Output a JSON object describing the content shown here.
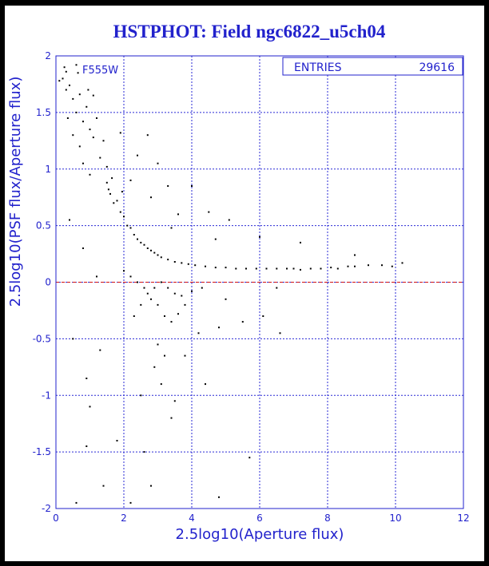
{
  "page": {
    "title": "HSTPHOT: Field ngc6822_u5ch04"
  },
  "colors": {
    "background": "#000000",
    "frame": "#ffffff",
    "accent": "#2222cc",
    "grid": "#2a2ad6",
    "points": "#000000",
    "reference_line": "#d01010"
  },
  "stats_box": {
    "label": "ENTRIES",
    "value": "29616"
  },
  "chart_data": {
    "type": "scatter",
    "panel_label": "F555W",
    "xlabel": "2.5log10(Aperture flux)",
    "ylabel": "2.5log10(PSF flux/Aperture flux)",
    "xlim": [
      0,
      12
    ],
    "ylim": [
      -2,
      2
    ],
    "x_ticks": [
      {
        "value": 0,
        "label": "0"
      },
      {
        "value": 2,
        "label": "2"
      },
      {
        "value": 4,
        "label": "4"
      },
      {
        "value": 6,
        "label": "6"
      },
      {
        "value": 8,
        "label": "8"
      },
      {
        "value": 10,
        "label": "10"
      },
      {
        "value": 12,
        "label": "12"
      }
    ],
    "y_ticks": [
      {
        "value": -2,
        "label": "-2"
      },
      {
        "value": -1.5,
        "label": "-1.5"
      },
      {
        "value": -1,
        "label": "-1"
      },
      {
        "value": -0.5,
        "label": "-0.5"
      },
      {
        "value": 0,
        "label": "0"
      },
      {
        "value": 0.5,
        "label": "0.5"
      },
      {
        "value": 1,
        "label": "1"
      },
      {
        "value": 1.5,
        "label": "1.5"
      },
      {
        "value": 2,
        "label": "2"
      }
    ],
    "grid": true,
    "reference_line_y": 0,
    "points": [
      [
        0.1,
        1.78
      ],
      [
        0.2,
        1.8
      ],
      [
        0.3,
        1.7
      ],
      [
        0.3,
        1.86
      ],
      [
        0.4,
        1.74
      ],
      [
        0.5,
        1.62
      ],
      [
        0.6,
        1.92
      ],
      [
        0.6,
        1.5
      ],
      [
        0.7,
        1.66
      ],
      [
        0.8,
        1.42
      ],
      [
        0.9,
        1.55
      ],
      [
        1.0,
        1.35
      ],
      [
        1.1,
        1.28
      ],
      [
        1.2,
        1.45
      ],
      [
        0.7,
        1.2
      ],
      [
        0.8,
        1.05
      ],
      [
        1.0,
        0.95
      ],
      [
        1.3,
        1.1
      ],
      [
        0.5,
        1.3
      ],
      [
        0.95,
        1.7
      ],
      [
        1.4,
        1.25
      ],
      [
        0.35,
        1.45
      ],
      [
        1.1,
        1.65
      ],
      [
        0.65,
        1.85
      ],
      [
        0.25,
        1.9
      ],
      [
        1.5,
        0.88
      ],
      [
        1.55,
        0.82
      ],
      [
        1.6,
        0.78
      ],
      [
        1.5,
        1.02
      ],
      [
        1.7,
        0.7
      ],
      [
        1.8,
        0.72
      ],
      [
        1.9,
        0.62
      ],
      [
        2.0,
        0.58
      ],
      [
        1.65,
        0.92
      ],
      [
        1.95,
        0.8
      ],
      [
        2.1,
        0.5
      ],
      [
        2.2,
        0.48
      ],
      [
        2.3,
        0.42
      ],
      [
        2.4,
        0.38
      ],
      [
        2.5,
        0.35
      ],
      [
        2.6,
        0.33
      ],
      [
        2.7,
        0.3
      ],
      [
        2.8,
        0.28
      ],
      [
        2.9,
        0.26
      ],
      [
        3.0,
        0.24
      ],
      [
        3.1,
        0.22
      ],
      [
        3.3,
        0.2
      ],
      [
        3.5,
        0.18
      ],
      [
        3.7,
        0.17
      ],
      [
        3.9,
        0.16
      ],
      [
        4.1,
        0.15
      ],
      [
        4.4,
        0.14
      ],
      [
        4.7,
        0.13
      ],
      [
        5.0,
        0.13
      ],
      [
        5.3,
        0.12
      ],
      [
        5.6,
        0.12
      ],
      [
        5.9,
        0.12
      ],
      [
        6.2,
        0.12
      ],
      [
        6.5,
        0.12
      ],
      [
        6.8,
        0.12
      ],
      [
        7.0,
        0.12
      ],
      [
        7.2,
        0.11
      ],
      [
        7.5,
        0.12
      ],
      [
        7.8,
        0.12
      ],
      [
        8.1,
        0.13
      ],
      [
        8.3,
        0.12
      ],
      [
        8.6,
        0.14
      ],
      [
        8.8,
        0.14
      ],
      [
        9.2,
        0.15
      ],
      [
        9.6,
        0.15
      ],
      [
        9.9,
        0.14
      ],
      [
        10.2,
        0.17
      ],
      [
        8.8,
        0.24
      ],
      [
        5.0,
        -0.15
      ],
      [
        3.0,
        -0.55
      ],
      [
        3.2,
        -0.65
      ],
      [
        2.9,
        -0.75
      ],
      [
        3.1,
        -0.9
      ],
      [
        2.5,
        -1.0
      ],
      [
        2.6,
        -1.5
      ],
      [
        2.8,
        -1.8
      ],
      [
        3.5,
        -1.05
      ],
      [
        4.4,
        -0.9
      ],
      [
        3.4,
        -1.2
      ],
      [
        1.8,
        -1.4
      ],
      [
        2.2,
        -1.95
      ],
      [
        1.4,
        -1.8
      ],
      [
        0.6,
        -1.95
      ],
      [
        1.0,
        -1.1
      ],
      [
        0.9,
        -1.45
      ],
      [
        2.3,
        -0.3
      ],
      [
        2.5,
        -0.2
      ],
      [
        2.7,
        -0.1
      ],
      [
        2.9,
        -0.05
      ],
      [
        3.1,
        0.0
      ],
      [
        3.3,
        -0.05
      ],
      [
        3.5,
        -0.1
      ],
      [
        3.7,
        -0.12
      ],
      [
        4.0,
        -0.08
      ],
      [
        4.3,
        -0.05
      ],
      [
        2.0,
        0.1
      ],
      [
        2.2,
        0.05
      ],
      [
        2.4,
        0.0
      ],
      [
        2.6,
        -0.05
      ],
      [
        2.8,
        -0.15
      ],
      [
        3.0,
        -0.2
      ],
      [
        3.2,
        -0.3
      ],
      [
        3.4,
        -0.35
      ],
      [
        3.6,
        -0.28
      ],
      [
        3.8,
        -0.2
      ],
      [
        0.4,
        0.55
      ],
      [
        0.8,
        0.3
      ],
      [
        1.2,
        0.05
      ],
      [
        0.5,
        -0.5
      ],
      [
        0.9,
        -0.85
      ],
      [
        1.3,
        -0.6
      ],
      [
        3.8,
        -0.65
      ],
      [
        4.2,
        -0.45
      ],
      [
        4.8,
        -0.4
      ],
      [
        5.5,
        -0.35
      ],
      [
        6.1,
        -0.3
      ],
      [
        6.6,
        -0.45
      ],
      [
        5.7,
        -1.55
      ],
      [
        4.8,
        -1.9
      ],
      [
        5.1,
        0.55
      ],
      [
        6.0,
        0.4
      ],
      [
        4.7,
        0.38
      ],
      [
        6.5,
        -0.05
      ],
      [
        7.2,
        0.35
      ],
      [
        3.6,
        0.6
      ],
      [
        2.7,
        1.3
      ],
      [
        3.0,
        1.05
      ],
      [
        2.4,
        1.12
      ],
      [
        2.2,
        0.9
      ],
      [
        3.3,
        0.85
      ],
      [
        4.0,
        0.85
      ],
      [
        1.9,
        1.32
      ],
      [
        2.8,
        0.75
      ],
      [
        3.4,
        0.48
      ],
      [
        4.5,
        0.62
      ]
    ]
  }
}
